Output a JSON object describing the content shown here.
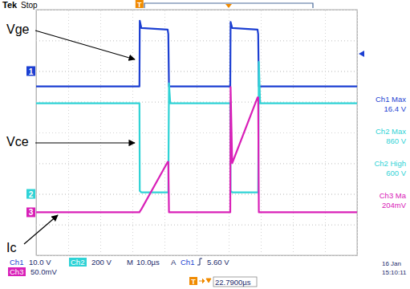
{
  "chart_data": {
    "type": "line",
    "brand": "Tek",
    "status": "Stop",
    "x": [
      0,
      32.2,
      32.3,
      32.8,
      41.0,
      41.2,
      41.4,
      41.8,
      60.5,
      60.6,
      61.1,
      69.0,
      69.2,
      69.4,
      69.8,
      100
    ],
    "xlim": [
      0,
      100
    ],
    "xticks": [
      0,
      10,
      20,
      30,
      40,
      50,
      60,
      70,
      80,
      90,
      100
    ],
    "grid": true,
    "tick_labels": false,
    "trigger": {
      "label": "T",
      "x": 32.2,
      "level": 5.6
    },
    "series": [
      {
        "name": "Vge",
        "channel": "1",
        "color": "#1c3fd2",
        "ylim": [
          -60,
          20
        ],
        "yticks": [
          -60,
          -50,
          -40,
          -30,
          -20,
          -10,
          0,
          10,
          20
        ],
        "values": [
          -5,
          -5,
          16.4,
          14,
          13.5,
          12,
          -5,
          -5,
          -5,
          16,
          14,
          13.5,
          12,
          -5,
          -5,
          -5
        ]
      },
      {
        "name": "Vce",
        "channel": "2",
        "color": "#2fd3d6",
        "ylim": [
          -400,
          1200
        ],
        "yticks": [
          -400,
          -200,
          0,
          200,
          400,
          600,
          800,
          1000,
          1200
        ],
        "values": [
          590,
          590,
          20,
          10,
          10,
          10,
          720,
          590,
          590,
          20,
          10,
          10,
          10,
          860,
          590,
          590
        ]
      },
      {
        "name": "Ic",
        "channel": "3",
        "color": "#d920b8",
        "ylim": [
          -70,
          330
        ],
        "yticks": [
          -70,
          -20,
          30,
          80,
          130,
          180,
          230,
          280,
          330
        ],
        "values": [
          0,
          0,
          1,
          5,
          82,
          82,
          0,
          0,
          0,
          204,
          80,
          187,
          187,
          0,
          0,
          0
        ]
      }
    ],
    "measurements": [
      {
        "label": "Ch1 Max",
        "value": "16.4 V",
        "channel": "1"
      },
      {
        "label": "Ch2 Max",
        "value": "860 V",
        "channel": "2"
      },
      {
        "label": "Ch2 High",
        "value": "600 V",
        "channel": "2"
      },
      {
        "label": "Ch3 Ma",
        "value": "204mV",
        "channel": "3"
      }
    ],
    "readouts": [
      [
        "Ch1",
        "10.0 V",
        "Ch2",
        "200 V",
        "M",
        "10.0µs",
        "A",
        "Ch1",
        "5.60 V"
      ],
      [
        "Ch3",
        "50.0mV"
      ]
    ],
    "trigger_delay": "22.7900µs",
    "timestamp": [
      "16 Jan",
      "15:10:11"
    ]
  }
}
